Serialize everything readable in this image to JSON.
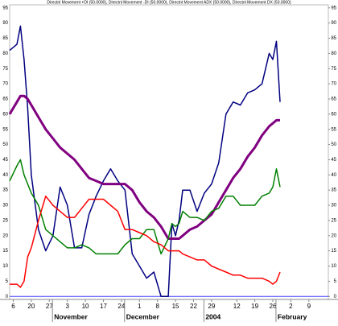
{
  "chart_data": {
    "type": "line",
    "title": "Directnl Movement +DI (50.0000), Directnl Movement -DI (50.0000), Directnl Movement ADX (50.0000), Directnl Movement DX (50.0000)",
    "x": [
      0,
      2,
      3,
      4,
      5,
      6,
      8,
      10,
      12,
      14,
      16,
      18,
      20,
      22,
      24,
      26,
      28,
      30,
      32,
      34,
      36,
      38,
      40,
      42,
      44,
      45,
      46,
      47,
      48,
      50,
      52,
      54,
      56,
      58,
      60,
      62,
      64,
      66,
      68,
      70,
      72,
      73,
      74,
      75
    ],
    "series": [
      {
        "color": "#000080",
        "width": 1.5,
        "values": [
          81,
          83,
          89,
          78,
          62,
          40,
          22,
          15,
          20,
          36,
          30,
          16,
          16,
          27,
          33,
          38,
          42,
          38,
          35,
          14,
          10,
          6,
          8,
          0,
          0,
          24,
          20,
          25,
          35,
          35,
          28,
          34,
          37,
          44,
          60,
          64,
          63,
          67,
          68,
          70,
          80,
          78,
          84,
          64
        ]
      },
      {
        "color": "#800080",
        "width": 3,
        "values": [
          60,
          64,
          66,
          66,
          65,
          63,
          59,
          55,
          52,
          49,
          47,
          45,
          42,
          39,
          38,
          37,
          37,
          37,
          37,
          35,
          31,
          28,
          26,
          23,
          19,
          19,
          19,
          19,
          20,
          22,
          23,
          25,
          27,
          31,
          35,
          39,
          42,
          46,
          49,
          53,
          56,
          57,
          58,
          58
        ]
      },
      {
        "color": "#008000",
        "width": 1.5,
        "values": [
          38,
          43,
          45,
          40,
          37,
          34,
          30,
          22,
          20,
          18,
          16,
          16,
          17,
          16,
          14,
          14,
          14,
          14,
          17,
          19,
          19,
          22,
          22,
          14,
          19,
          24,
          23,
          24,
          28,
          26,
          26,
          25,
          28,
          29,
          33,
          33,
          30,
          30,
          30,
          33,
          34,
          36,
          42,
          36
        ]
      },
      {
        "color": "#ff0000",
        "width": 1.5,
        "values": [
          4,
          4,
          3,
          5,
          13,
          16,
          25,
          33,
          30,
          28,
          26,
          26,
          29,
          32,
          32,
          32,
          30,
          28,
          22,
          22,
          21,
          20,
          18,
          17,
          15,
          15,
          15,
          15,
          14,
          13,
          12,
          12,
          10,
          9,
          8,
          7,
          7,
          6,
          6,
          6,
          5,
          4,
          5,
          8
        ]
      }
    ],
    "zero_line_color": "#4040ff",
    "xlim": [
      0,
      88.4
    ],
    "xticks": [
      {
        "value": 1,
        "label": "6"
      },
      {
        "value": 6,
        "label": "20"
      },
      {
        "value": 11,
        "label": "27"
      },
      {
        "value": 16,
        "label": "3"
      },
      {
        "value": 21,
        "label": "10"
      },
      {
        "value": 26,
        "label": "17"
      },
      {
        "value": 31,
        "label": "24"
      },
      {
        "value": 36,
        "label": "1"
      },
      {
        "value": 41,
        "label": "8"
      },
      {
        "value": 46,
        "label": "15"
      },
      {
        "value": 51,
        "label": "22"
      },
      {
        "value": 56,
        "label": "29"
      },
      {
        "value": 63,
        "label": "12"
      },
      {
        "value": 68,
        "label": "19"
      },
      {
        "value": 73,
        "label": "26"
      },
      {
        "value": 78,
        "label": "2"
      },
      {
        "value": 83,
        "label": "9"
      }
    ],
    "month_labels": [
      {
        "value": 15,
        "label": "November"
      },
      {
        "value": 35,
        "label": "December"
      },
      {
        "value": 57,
        "label": "2004"
      },
      {
        "value": 77,
        "label": "February"
      }
    ],
    "ylim": [
      -1,
      96
    ],
    "yticks": [
      0,
      5,
      10,
      15,
      20,
      25,
      30,
      35,
      40,
      45,
      50,
      55,
      60,
      65,
      70,
      75,
      80,
      85,
      90,
      95
    ]
  }
}
